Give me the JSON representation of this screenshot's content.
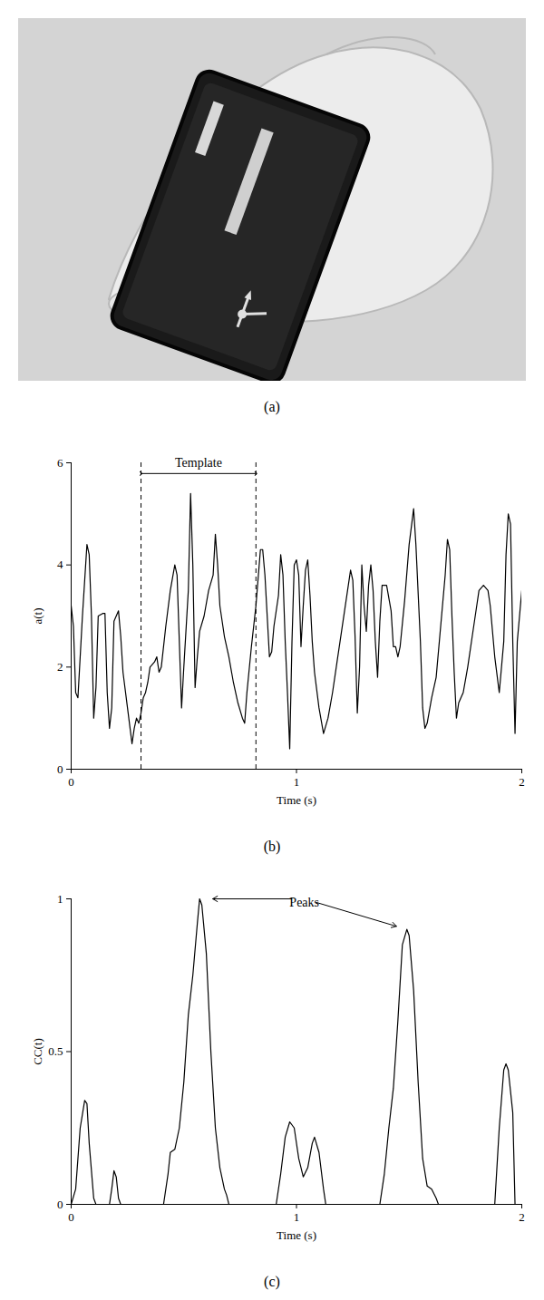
{
  "photo": {
    "caption": "(a)"
  },
  "chart_data": [
    {
      "type": "line",
      "caption": "(b)",
      "xlabel": "Time (s)",
      "ylabel": "a(t)",
      "color": "#000000",
      "xlim": [
        0,
        2
      ],
      "xticks": [
        0,
        1,
        2
      ],
      "ylim": [
        0,
        6
      ],
      "yticks": [
        0,
        2,
        4,
        6
      ],
      "x": [
        0,
        0.01,
        0.02,
        0.03,
        0.05,
        0.07,
        0.08,
        0.09,
        0.1,
        0.11,
        0.12,
        0.14,
        0.15,
        0.16,
        0.17,
        0.18,
        0.19,
        0.21,
        0.22,
        0.23,
        0.25,
        0.27,
        0.28,
        0.29,
        0.3,
        0.31,
        0.32,
        0.33,
        0.34,
        0.35,
        0.37,
        0.38,
        0.39,
        0.4,
        0.42,
        0.44,
        0.46,
        0.47,
        0.49,
        0.5,
        0.52,
        0.53,
        0.54,
        0.55,
        0.56,
        0.57,
        0.59,
        0.61,
        0.63,
        0.64,
        0.65,
        0.66,
        0.68,
        0.7,
        0.72,
        0.74,
        0.76,
        0.77,
        0.78,
        0.8,
        0.82,
        0.84,
        0.85,
        0.86,
        0.88,
        0.89,
        0.9,
        0.92,
        0.93,
        0.94,
        0.95,
        0.96,
        0.97,
        0.98,
        0.99,
        1.0,
        1.01,
        1.02,
        1.03,
        1.04,
        1.05,
        1.06,
        1.07,
        1.08,
        1.1,
        1.12,
        1.14,
        1.16,
        1.18,
        1.2,
        1.22,
        1.24,
        1.25,
        1.26,
        1.27,
        1.28,
        1.29,
        1.3,
        1.31,
        1.32,
        1.33,
        1.34,
        1.35,
        1.36,
        1.37,
        1.38,
        1.4,
        1.42,
        1.43,
        1.44,
        1.45,
        1.46,
        1.48,
        1.5,
        1.52,
        1.53,
        1.55,
        1.56,
        1.57,
        1.58,
        1.6,
        1.62,
        1.64,
        1.66,
        1.67,
        1.68,
        1.69,
        1.7,
        1.71,
        1.72,
        1.74,
        1.76,
        1.78,
        1.8,
        1.81,
        1.83,
        1.85,
        1.86,
        1.88,
        1.9,
        1.92,
        1.93,
        1.94,
        1.95,
        1.96,
        1.97,
        1.98,
        1.99,
        2.0
      ],
      "values": [
        3.2,
        2.8,
        1.5,
        1.4,
        3.0,
        4.4,
        4.2,
        3.0,
        1.0,
        1.6,
        3.0,
        3.05,
        3.05,
        1.5,
        0.8,
        1.2,
        2.9,
        3.1,
        2.6,
        1.9,
        1.2,
        0.5,
        0.8,
        1.0,
        0.9,
        1.1,
        1.4,
        1.5,
        1.7,
        2.0,
        2.1,
        2.2,
        1.9,
        2.0,
        2.8,
        3.5,
        4.0,
        3.8,
        1.2,
        2.0,
        3.5,
        5.4,
        4.0,
        1.6,
        2.2,
        2.7,
        3.0,
        3.5,
        3.8,
        4.6,
        4.0,
        3.2,
        2.6,
        2.2,
        1.7,
        1.3,
        1.0,
        0.9,
        1.5,
        2.4,
        3.2,
        4.3,
        4.3,
        3.8,
        2.2,
        2.3,
        2.8,
        3.4,
        4.2,
        3.8,
        2.5,
        1.5,
        0.4,
        2.5,
        4.0,
        4.1,
        3.8,
        2.4,
        3.2,
        3.9,
        4.1,
        3.4,
        2.5,
        1.9,
        1.2,
        0.7,
        1.0,
        1.5,
        2.1,
        2.7,
        3.3,
        3.9,
        3.7,
        2.6,
        1.1,
        2.0,
        4.0,
        3.2,
        2.7,
        3.6,
        4.0,
        3.5,
        2.5,
        1.8,
        2.9,
        3.6,
        3.6,
        3.1,
        2.4,
        2.4,
        2.2,
        2.4,
        3.3,
        4.4,
        5.1,
        4.4,
        2.5,
        1.2,
        0.8,
        0.9,
        1.4,
        1.8,
        2.8,
        3.8,
        4.5,
        4.3,
        3.0,
        1.9,
        1.0,
        1.3,
        1.5,
        2.0,
        2.6,
        3.2,
        3.5,
        3.6,
        3.5,
        3.2,
        2.2,
        1.5,
        2.5,
        4.2,
        5.0,
        4.8,
        2.5,
        0.7,
        2.5,
        3.0,
        3.5
      ],
      "annotations": [
        {
          "type": "span",
          "label": "Template",
          "x": [
            0.31,
            0.82
          ]
        }
      ]
    },
    {
      "type": "line",
      "caption": "(c)",
      "xlabel": "Time (s)",
      "ylabel": "CC(t)",
      "color": "#000000",
      "xlim": [
        0,
        2
      ],
      "xticks": [
        0,
        1,
        2
      ],
      "ylim": [
        0,
        1
      ],
      "yticks": [
        0,
        0.5,
        1
      ],
      "x": [
        0,
        0.02,
        0.04,
        0.06,
        0.07,
        0.08,
        0.1,
        0.11,
        0.17,
        0.18,
        0.19,
        0.2,
        0.21,
        0.22,
        0.41,
        0.43,
        0.44,
        0.46,
        0.48,
        0.5,
        0.52,
        0.54,
        0.56,
        0.57,
        0.58,
        0.6,
        0.62,
        0.64,
        0.66,
        0.68,
        0.69,
        0.7,
        0.91,
        0.93,
        0.95,
        0.97,
        0.99,
        1.01,
        1.03,
        1.05,
        1.07,
        1.08,
        1.1,
        1.12,
        1.13,
        1.37,
        1.39,
        1.41,
        1.43,
        1.45,
        1.47,
        1.49,
        1.5,
        1.52,
        1.54,
        1.56,
        1.58,
        1.6,
        1.62,
        1.63,
        1.88,
        1.9,
        1.92,
        1.93,
        1.94,
        1.96,
        1.97,
        2.0
      ],
      "values": [
        0,
        0.05,
        0.25,
        0.34,
        0.33,
        0.2,
        0.02,
        0,
        0,
        0.05,
        0.11,
        0.09,
        0.02,
        0,
        0,
        0.1,
        0.17,
        0.18,
        0.25,
        0.4,
        0.62,
        0.75,
        0.92,
        1.0,
        0.98,
        0.82,
        0.5,
        0.25,
        0.12,
        0.05,
        0.03,
        0,
        0,
        0.1,
        0.22,
        0.27,
        0.25,
        0.15,
        0.09,
        0.12,
        0.2,
        0.22,
        0.17,
        0.05,
        0,
        0,
        0.1,
        0.25,
        0.38,
        0.6,
        0.85,
        0.9,
        0.88,
        0.7,
        0.4,
        0.15,
        0.06,
        0.05,
        0.02,
        0,
        0,
        0.25,
        0.44,
        0.46,
        0.44,
        0.3,
        0,
        0
      ],
      "annotations": [
        {
          "type": "arrows",
          "label": "Peaks",
          "x": [
            0.58,
            1.49
          ],
          "y": [
            1.0,
            0.9
          ]
        }
      ]
    }
  ]
}
